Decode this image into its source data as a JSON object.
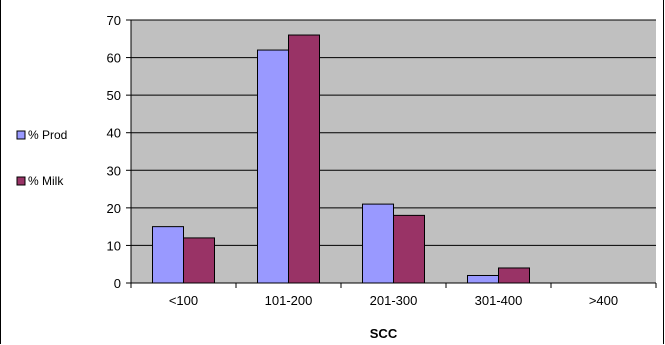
{
  "chart_data": {
    "type": "bar",
    "title": "",
    "xlabel": "SCC",
    "ylabel": "",
    "categories": [
      "<100",
      "101-200",
      "201-300",
      "301-400",
      ">400"
    ],
    "series": [
      {
        "name": "% Prod",
        "values": [
          15,
          62,
          21,
          2,
          0
        ],
        "color": "#9999ff"
      },
      {
        "name": "% Milk",
        "values": [
          12,
          66,
          18,
          4,
          0
        ],
        "color": "#993366"
      }
    ],
    "ylim": [
      0,
      70
    ],
    "yticks": [
      0,
      10,
      20,
      30,
      40,
      50,
      60,
      70
    ],
    "grid": true,
    "legend_position": "left",
    "plot_background": "#c0c0c0"
  }
}
